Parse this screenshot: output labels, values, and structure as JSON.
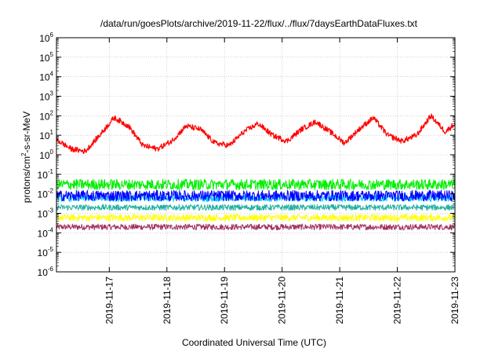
{
  "chart_data": {
    "type": "line",
    "title": "/data/run/goesPlots/archive/2019-11-22/flux/../flux/7daysEarthDataFluxes.txt",
    "xlabel": "Coordinated Universal Time (UTC)",
    "ylabel": {
      "prefix": "protons/cm",
      "sup": "2",
      "suffix": "-s-sr-MeV"
    },
    "yscale": "log",
    "ylim": [
      1e-06,
      1000000.0
    ],
    "xlim": [
      "2019-11-16T02:00",
      "2019-11-23T00:00"
    ],
    "grid": true,
    "x_ticks": [
      "2019-11-17",
      "2019-11-18",
      "2019-11-19",
      "2019-11-20",
      "2019-11-21",
      "2019-11-22",
      "2019-11-23"
    ],
    "y_ticks": [
      {
        "base": "10",
        "exp": "6",
        "value": 1000000.0
      },
      {
        "base": "10",
        "exp": "5",
        "value": 100000.0
      },
      {
        "base": "10",
        "exp": "4",
        "value": 10000.0
      },
      {
        "base": "10",
        "exp": "3",
        "value": 1000.0
      },
      {
        "base": "10",
        "exp": "2",
        "value": 100.0
      },
      {
        "base": "10",
        "exp": "1",
        "value": 10.0
      },
      {
        "base": "10",
        "exp": "0",
        "value": 1.0
      },
      {
        "base": "10",
        "exp": "-1",
        "value": 0.1
      },
      {
        "base": "10",
        "exp": "-2",
        "value": 0.01
      },
      {
        "base": "10",
        "exp": "-3",
        "value": 0.001
      },
      {
        "base": "10",
        "exp": "-4",
        "value": 0.0001
      },
      {
        "base": "10",
        "exp": "-5",
        "value": 1e-05
      },
      {
        "base": "10",
        "exp": "-6",
        "value": 1e-06
      }
    ],
    "series": [
      {
        "color": "#ff0000",
        "x": [
          "2019-11-16T02:00",
          "2019-11-16T08:00",
          "2019-11-16T14:00",
          "2019-11-16T20:00",
          "2019-11-17T02:00",
          "2019-11-17T08:00",
          "2019-11-17T14:00",
          "2019-11-17T20:00",
          "2019-11-18T02:00",
          "2019-11-18T08:00",
          "2019-11-18T14:00",
          "2019-11-18T20:00",
          "2019-11-19T02:00",
          "2019-11-19T08:00",
          "2019-11-19T14:00",
          "2019-11-19T20:00",
          "2019-11-20T02:00",
          "2019-11-20T08:00",
          "2019-11-20T14:00",
          "2019-11-20T20:00",
          "2019-11-21T02:00",
          "2019-11-21T08:00",
          "2019-11-21T14:00",
          "2019-11-21T20:00",
          "2019-11-22T02:00",
          "2019-11-22T08:00",
          "2019-11-22T14:00",
          "2019-11-22T20:00",
          "2019-11-23T00:00"
        ],
        "y": [
          6,
          2,
          1.5,
          10,
          80,
          30,
          3,
          2,
          5,
          30,
          20,
          4,
          3,
          15,
          40,
          10,
          5,
          20,
          50,
          15,
          4,
          20,
          80,
          10,
          5,
          10,
          100,
          15,
          40
        ]
      },
      {
        "color": "#00ee00",
        "x": [
          "2019-11-16T02:00",
          "2019-11-17T00:00",
          "2019-11-18T00:00",
          "2019-11-19T00:00",
          "2019-11-20T00:00",
          "2019-11-21T00:00",
          "2019-11-22T00:00",
          "2019-11-23T00:00"
        ],
        "y": [
          0.03,
          0.03,
          0.03,
          0.03,
          0.03,
          0.03,
          0.03,
          0.03
        ]
      },
      {
        "color": "#0000ff",
        "x": [
          "2019-11-16T02:00",
          "2019-11-17T00:00",
          "2019-11-18T00:00",
          "2019-11-19T00:00",
          "2019-11-20T00:00",
          "2019-11-21T00:00",
          "2019-11-22T00:00",
          "2019-11-23T00:00"
        ],
        "y": [
          0.008,
          0.008,
          0.008,
          0.008,
          0.008,
          0.008,
          0.008,
          0.008
        ]
      },
      {
        "color": "#00c0ff",
        "x": [
          "2019-11-16T02:00",
          "2019-11-17T00:00",
          "2019-11-18T00:00",
          "2019-11-19T00:00",
          "2019-11-20T00:00",
          "2019-11-21T00:00",
          "2019-11-22T00:00",
          "2019-11-23T00:00"
        ],
        "y": [
          0.006,
          0.006,
          0.006,
          0.006,
          0.006,
          0.006,
          0.006,
          0.006
        ]
      },
      {
        "color": "#20b0a0",
        "x": [
          "2019-11-16T02:00",
          "2019-11-17T00:00",
          "2019-11-18T00:00",
          "2019-11-19T00:00",
          "2019-11-20T00:00",
          "2019-11-21T00:00",
          "2019-11-22T00:00",
          "2019-11-23T00:00"
        ],
        "y": [
          0.002,
          0.002,
          0.002,
          0.002,
          0.002,
          0.002,
          0.002,
          0.002
        ]
      },
      {
        "color": "#ffff00",
        "x": [
          "2019-11-16T02:00",
          "2019-11-17T00:00",
          "2019-11-18T00:00",
          "2019-11-19T00:00",
          "2019-11-20T00:00",
          "2019-11-21T00:00",
          "2019-11-22T00:00",
          "2019-11-23T00:00"
        ],
        "y": [
          0.0006,
          0.0006,
          0.0006,
          0.0006,
          0.0006,
          0.0006,
          0.0006,
          0.0006
        ]
      },
      {
        "color": "#a03060",
        "x": [
          "2019-11-16T02:00",
          "2019-11-17T00:00",
          "2019-11-18T00:00",
          "2019-11-19T00:00",
          "2019-11-20T00:00",
          "2019-11-21T00:00",
          "2019-11-22T00:00",
          "2019-11-23T00:00"
        ],
        "y": [
          0.0002,
          0.0002,
          0.0002,
          0.0002,
          0.0002,
          0.0002,
          0.0002,
          0.0002
        ]
      }
    ]
  }
}
